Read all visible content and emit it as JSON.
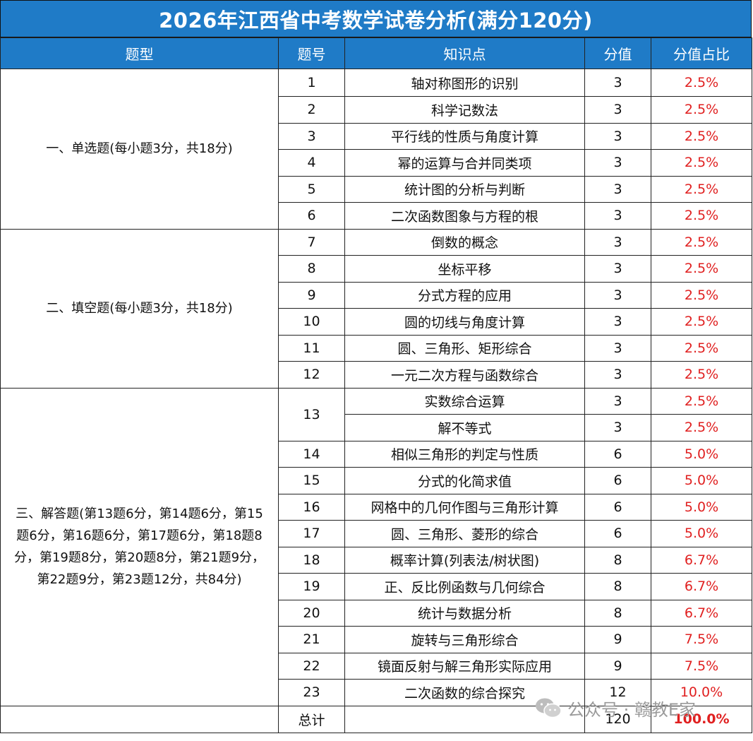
{
  "title": "2026年江西省中考数学试卷分析(满分120分)",
  "headers": {
    "type": "题型",
    "number": "题号",
    "knowledge": "知识点",
    "score": "分值",
    "ratio": "分值占比"
  },
  "sections": [
    {
      "label": "一、单选题(每小题3分，共18分)",
      "rows": [
        {
          "no": "1",
          "topic": "轴对称图形的识别",
          "score": "3",
          "pct": "2.5%"
        },
        {
          "no": "2",
          "topic": "科学记数法",
          "score": "3",
          "pct": "2.5%"
        },
        {
          "no": "3",
          "topic": "平行线的性质与角度计算",
          "score": "3",
          "pct": "2.5%"
        },
        {
          "no": "4",
          "topic": "幂的运算与合并同类项",
          "score": "3",
          "pct": "2.5%"
        },
        {
          "no": "5",
          "topic": "统计图的分析与判断",
          "score": "3",
          "pct": "2.5%"
        },
        {
          "no": "6",
          "topic": "二次函数图象与方程的根",
          "score": "3",
          "pct": "2.5%"
        }
      ]
    },
    {
      "label": "二、填空题(每小题3分，共18分)",
      "rows": [
        {
          "no": "7",
          "topic": "倒数的概念",
          "score": "3",
          "pct": "2.5%"
        },
        {
          "no": "8",
          "topic": "坐标平移",
          "score": "3",
          "pct": "2.5%"
        },
        {
          "no": "9",
          "topic": "分式方程的应用",
          "score": "3",
          "pct": "2.5%"
        },
        {
          "no": "10",
          "topic": "圆的切线与角度计算",
          "score": "3",
          "pct": "2.5%"
        },
        {
          "no": "11",
          "topic": "圆、三角形、矩形综合",
          "score": "3",
          "pct": "2.5%"
        },
        {
          "no": "12",
          "topic": "一元二次方程与函数综合",
          "score": "3",
          "pct": "2.5%"
        }
      ]
    },
    {
      "label": "三、解答题(第13题6分，第14题6分，第15题6分，第16题6分，第17题6分，第18题8分，第19题8分，第20题8分，第21题9分，第22题9分，第23题12分，共84分)",
      "rows": [
        {
          "no": "13",
          "topic": "实数综合运算",
          "score": "3",
          "pct": "2.5%"
        },
        {
          "no": "",
          "topic": "解不等式",
          "score": "3",
          "pct": "2.5%"
        },
        {
          "no": "14",
          "topic": "相似三角形的判定与性质",
          "score": "6",
          "pct": "5.0%"
        },
        {
          "no": "15",
          "topic": "分式的化简求值",
          "score": "6",
          "pct": "5.0%"
        },
        {
          "no": "16",
          "topic": "网格中的几何作图与三角形计算",
          "score": "6",
          "pct": "5.0%"
        },
        {
          "no": "17",
          "topic": "圆、三角形、菱形的综合",
          "score": "6",
          "pct": "5.0%"
        },
        {
          "no": "18",
          "topic": "概率计算(列表法/树状图)",
          "score": "8",
          "pct": "6.7%"
        },
        {
          "no": "19",
          "topic": "正、反比例函数与几何综合",
          "score": "8",
          "pct": "6.7%"
        },
        {
          "no": "20",
          "topic": "统计与数据分析",
          "score": "8",
          "pct": "6.7%"
        },
        {
          "no": "21",
          "topic": "旋转与三角形综合",
          "score": "9",
          "pct": "7.5%"
        },
        {
          "no": "22",
          "topic": "镜面反射与解三角形实际应用",
          "score": "9",
          "pct": "7.5%"
        },
        {
          "no": "23",
          "topic": "二次函数的综合探究",
          "score": "12",
          "pct": "10.0%"
        }
      ]
    }
  ],
  "total": {
    "label": "总计",
    "score": "120",
    "pct": "100.0%"
  },
  "watermark": "公众号 · 赣教E家",
  "colors": {
    "header_bg": "#1f7bc7",
    "pct_text": "#e02020"
  }
}
